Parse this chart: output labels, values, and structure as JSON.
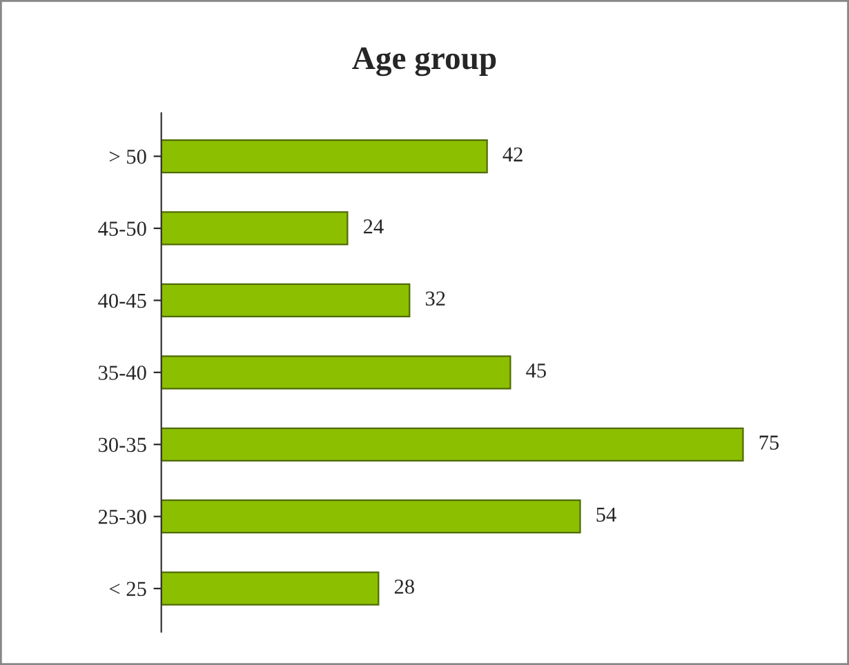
{
  "chart_data": {
    "type": "bar",
    "orientation": "horizontal",
    "title": "Age group",
    "categories": [
      "> 50",
      "45-50",
      "40-45",
      "35-40",
      "30-35",
      "25-30",
      "< 25"
    ],
    "values": [
      42,
      24,
      32,
      45,
      75,
      54,
      28
    ],
    "color": "#8cbf00",
    "data_labels": true
  }
}
